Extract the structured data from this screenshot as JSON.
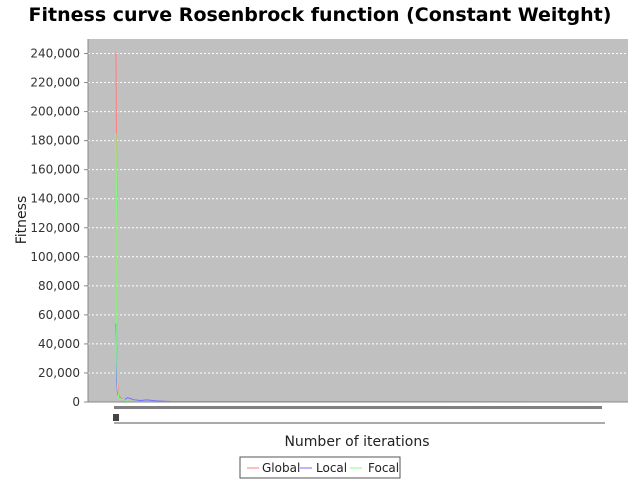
{
  "chart_data": {
    "type": "line",
    "title": "Fitness curve Rosenbrock function (Constant Weitght)",
    "xlabel": "Number of iterations",
    "ylabel": "Fitness",
    "ylim": [
      0,
      250000
    ],
    "y_ticks": [
      "0",
      "20,000",
      "40,000",
      "60,000",
      "80,000",
      "100,000",
      "120,000",
      "140,000",
      "160,000",
      "180,000",
      "200,000",
      "220,000",
      "240,000"
    ],
    "y_tick_values": [
      0,
      20000,
      40000,
      60000,
      80000,
      100000,
      120000,
      140000,
      160000,
      180000,
      200000,
      220000,
      240000
    ],
    "xlim": [
      0,
      500
    ],
    "grid": true,
    "legend_position": "bottom",
    "series": [
      {
        "name": "Global",
        "color": "#ff7f7f",
        "x": [
          1,
          1,
          2,
          2,
          3,
          4,
          5,
          6,
          8,
          10,
          15,
          500
        ],
        "y": [
          241000,
          150000,
          60000,
          15000,
          5000,
          2500,
          1500,
          800,
          400,
          200,
          50,
          10
        ]
      },
      {
        "name": "Local",
        "color": "#6f6fff",
        "x": [
          1,
          1,
          2,
          2,
          3,
          4,
          5,
          6,
          8,
          10,
          12,
          15,
          20,
          500
        ],
        "y": [
          54000,
          35000,
          15000,
          6000,
          3500,
          2000,
          1500,
          3000,
          1500,
          1000,
          1500,
          800,
          300,
          30
        ]
      },
      {
        "name": "Focal",
        "color": "#7fff7f",
        "x": [
          1,
          1,
          2,
          2,
          3,
          4,
          5,
          6,
          8,
          10,
          15,
          500
        ],
        "y": [
          185000,
          120000,
          40000,
          10000,
          3000,
          2000,
          1500,
          700,
          400,
          200,
          60,
          15
        ]
      }
    ]
  }
}
